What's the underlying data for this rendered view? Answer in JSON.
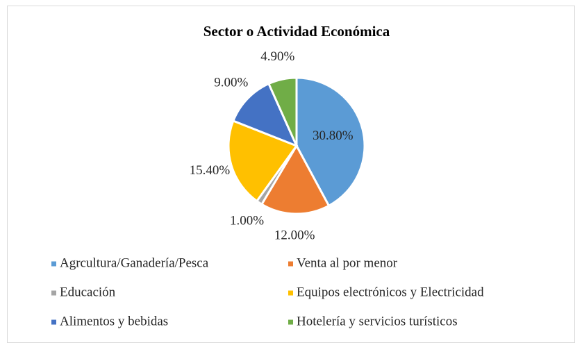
{
  "chart_data": {
    "type": "pie",
    "title": "Sector o Actividad Económica",
    "categories": [
      "Agrcultura/Ganadería/Pesca",
      "Venta al por menor",
      "Educación",
      "Equipos electrónicos y Electricidad",
      "Alimentos y bebidas",
      "Hotelería y servicios turísticos"
    ],
    "values": [
      30.8,
      12.0,
      1.0,
      15.4,
      9.0,
      4.9
    ],
    "value_labels": [
      "30.80%",
      "12.00%",
      "1.00%",
      "15.40%",
      "9.00%",
      "4.90%"
    ],
    "colors": [
      "#5b9bd5",
      "#ed7d31",
      "#a5a5a5",
      "#ffc000",
      "#4472c4",
      "#70ad47"
    ],
    "legend": "bottom"
  }
}
